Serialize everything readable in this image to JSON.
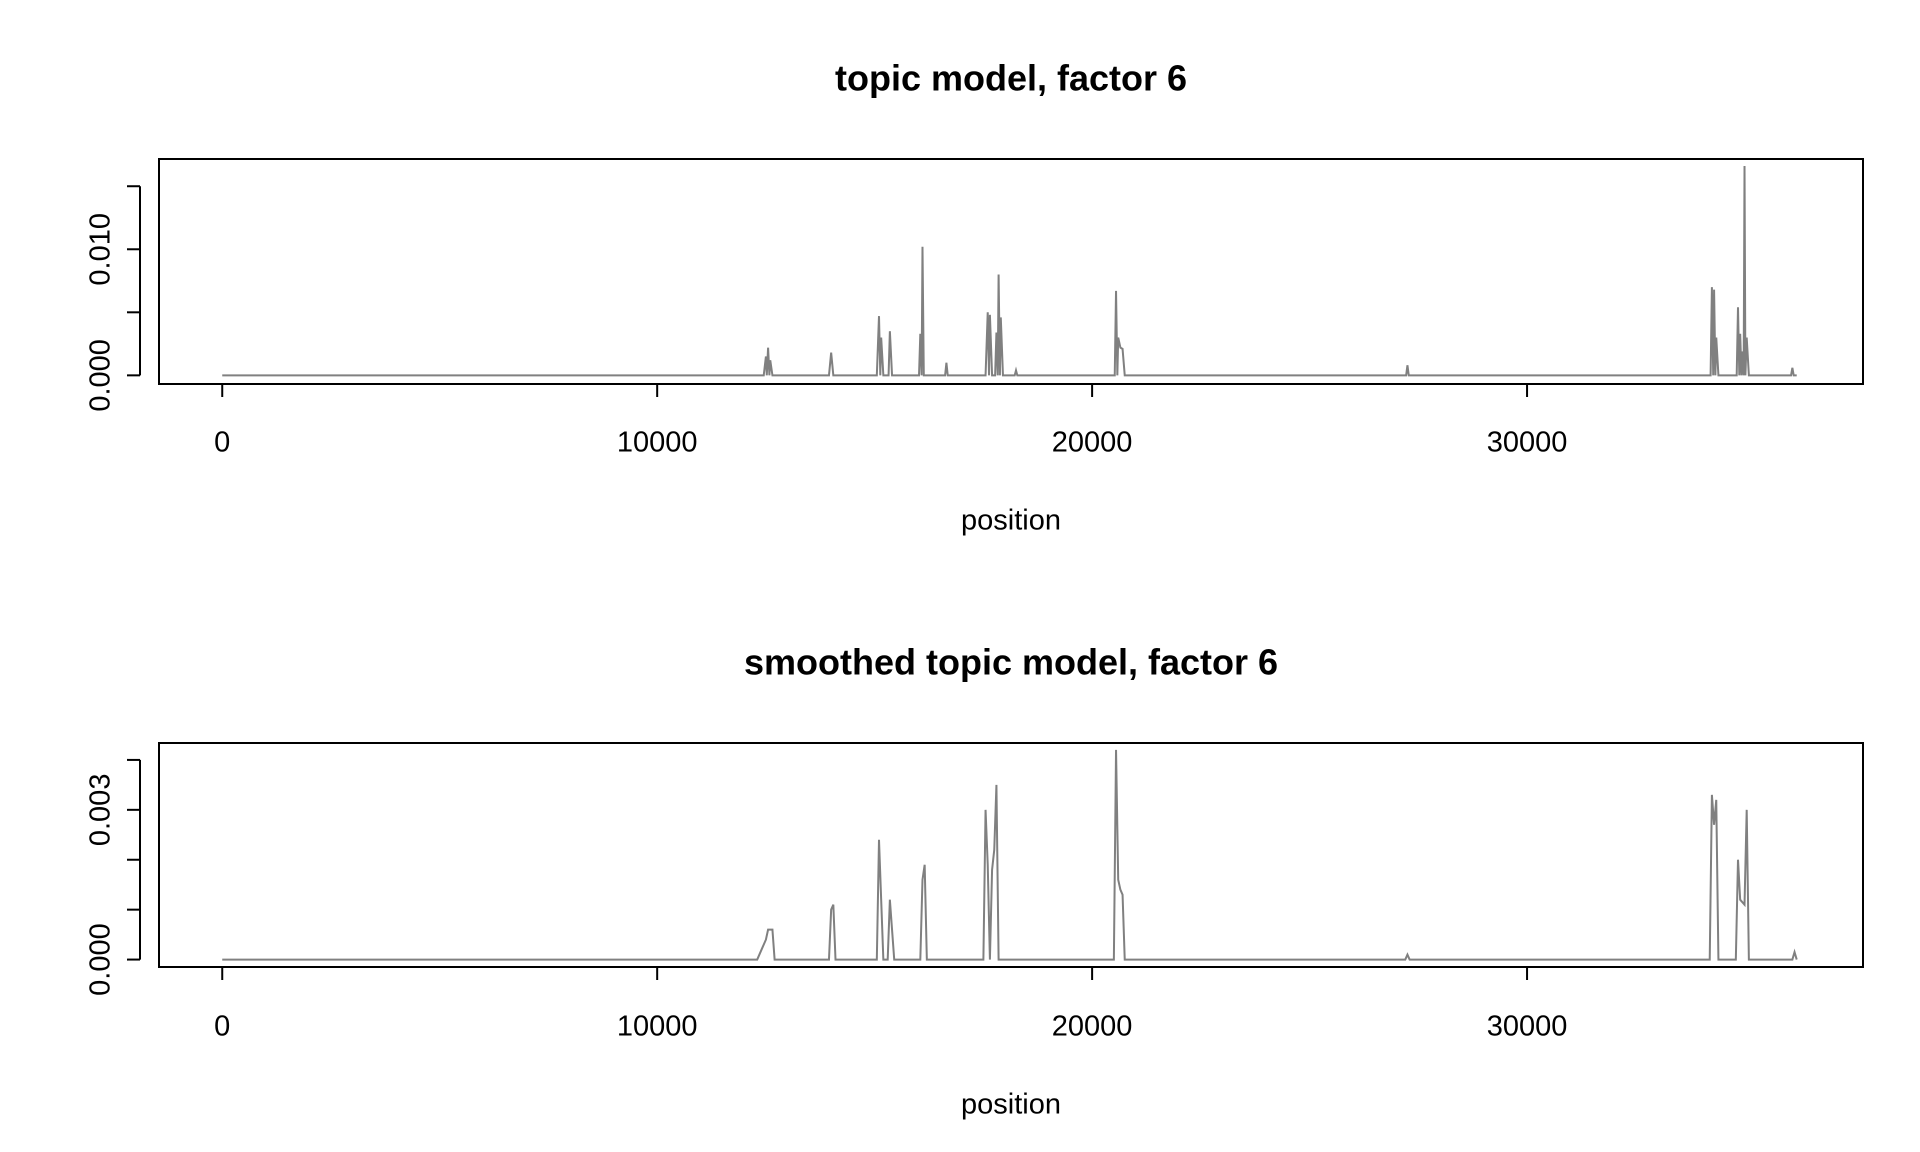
{
  "chart_data": [
    {
      "type": "line",
      "title": "topic model, factor 6",
      "xlabel": "position",
      "color": "#808080",
      "xlim": [
        -1454,
        37724
      ],
      "ylim": [
        -0.000686,
        0.01716
      ],
      "xticks": [
        0,
        10000,
        20000,
        30000
      ],
      "yticks": [
        {
          "value": 0,
          "label": "0.000"
        },
        {
          "value": 0.005
        },
        {
          "value": 0.01,
          "label": "0.010"
        },
        {
          "value": 0.015
        }
      ],
      "x": [
        0,
        12450,
        12500,
        12520,
        12550,
        12580,
        12600,
        12650,
        13950,
        14000,
        14050,
        15050,
        15100,
        15130,
        15150,
        15200,
        15320,
        15350,
        15400,
        16020,
        16050,
        16080,
        16100,
        16130,
        16620,
        16650,
        16680,
        17550,
        17600,
        17630,
        17650,
        17700,
        17770,
        17800,
        17830,
        17850,
        17880,
        17900,
        17950,
        18220,
        18250,
        18280,
        20520,
        20550,
        20580,
        20600,
        20650,
        20700,
        20750,
        27220,
        27250,
        27280,
        34220,
        34250,
        34280,
        34300,
        34330,
        34350,
        34400,
        34820,
        34850,
        34880,
        34900,
        34930,
        34950,
        34980,
        35000,
        35020,
        35050,
        35100,
        36070,
        36100,
        36130,
        36200
      ],
      "values": [
        0,
        0,
        0.0015,
        0,
        0.0022,
        0,
        0.0012,
        0,
        0,
        0.0018,
        0,
        0,
        0.0047,
        0,
        0.003,
        0,
        0,
        0.0035,
        0,
        0,
        0.0033,
        0,
        0.0102,
        0,
        0,
        0.001,
        0,
        0,
        0.005,
        0,
        0.0048,
        0,
        0,
        0.0034,
        0,
        0.008,
        0,
        0.0046,
        0,
        0,
        0.0004,
        0,
        0,
        0.0067,
        0,
        0.003,
        0.0022,
        0.0021,
        0,
        0,
        0.0008,
        0,
        0,
        0.007,
        0,
        0.0068,
        0,
        0.003,
        0,
        0,
        0.0054,
        0,
        0.0033,
        0,
        0.0019,
        0,
        0.0166,
        0,
        0.003,
        0,
        0,
        0.0006,
        0,
        0
      ]
    },
    {
      "type": "line",
      "title": "smoothed topic model, factor 6",
      "xlabel": "position",
      "color": "#808080",
      "xlim": [
        -1454,
        37724
      ],
      "ylim": [
        -0.000149,
        0.004339
      ],
      "xticks": [
        0,
        10000,
        20000,
        30000
      ],
      "yticks": [
        {
          "value": 0,
          "label": "0.000"
        },
        {
          "value": 0.001
        },
        {
          "value": 0.002
        },
        {
          "value": 0.003,
          "label": "0.003"
        },
        {
          "value": 0.004
        }
      ],
      "x": [
        0,
        12300,
        12400,
        12500,
        12550,
        12650,
        12700,
        13950,
        14000,
        14050,
        14100,
        15050,
        15100,
        15150,
        15200,
        15300,
        15350,
        15400,
        15450,
        16050,
        16100,
        16150,
        16200,
        17500,
        17550,
        17600,
        17650,
        17700,
        17750,
        17800,
        17850,
        20500,
        20550,
        20600,
        20650,
        20700,
        20750,
        27200,
        27250,
        27300,
        34200,
        34250,
        34300,
        34350,
        34400,
        34800,
        34850,
        34900,
        35000,
        35050,
        35100,
        36100,
        36150,
        36200
      ],
      "values": [
        0,
        0,
        0.0002,
        0.0004,
        0.0006,
        0.0006,
        0,
        0,
        0.001,
        0.0011,
        0,
        0,
        0.0024,
        0.0012,
        0,
        0,
        0.0012,
        0.0006,
        0,
        0,
        0.0016,
        0.0019,
        0,
        0,
        0.003,
        0.0019,
        0,
        0.0018,
        0.0022,
        0.0035,
        0,
        0,
        0.0042,
        0.0016,
        0.0014,
        0.0013,
        0,
        0,
        0.0001,
        0,
        0,
        0.0033,
        0.0027,
        0.0032,
        0,
        0,
        0.002,
        0.0012,
        0.0011,
        0.003,
        0,
        0,
        0.00015,
        0
      ]
    }
  ]
}
